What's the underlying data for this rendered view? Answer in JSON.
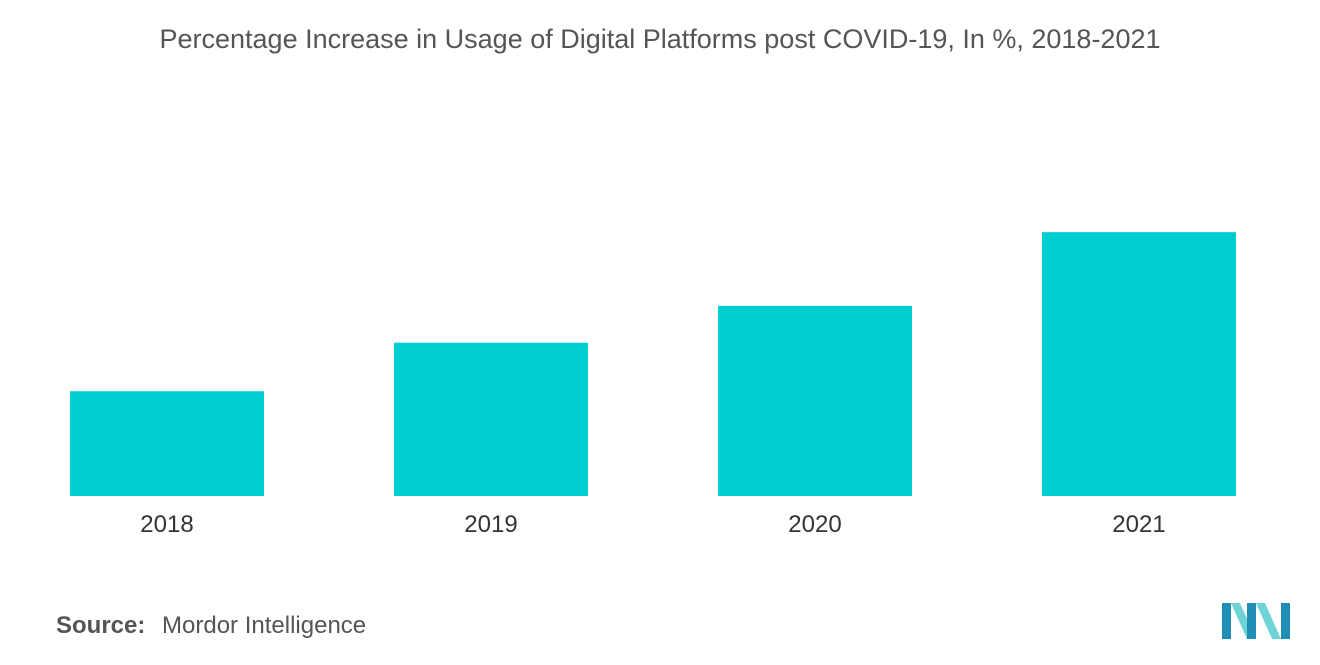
{
  "chart_data": {
    "type": "bar",
    "title": "Percentage Increase in Usage of Digital Platforms post COVID-19, In %, 2018-2021",
    "categories": [
      "2018",
      "2019",
      "2020",
      "2021"
    ],
    "values": [
      27,
      39.5,
      49,
      68
    ],
    "ylim": [
      0,
      100
    ],
    "xlabel": "",
    "ylabel": "",
    "grid": false,
    "legend": "none",
    "bar_color": "#00CED1"
  },
  "footer": {
    "source_label": "Source:",
    "source_value": "Mordor Intelligence"
  },
  "logo": {
    "icon": "mordor-intelligence-logo",
    "colors": [
      "#1F8FB5",
      "#6FD3D8"
    ]
  }
}
